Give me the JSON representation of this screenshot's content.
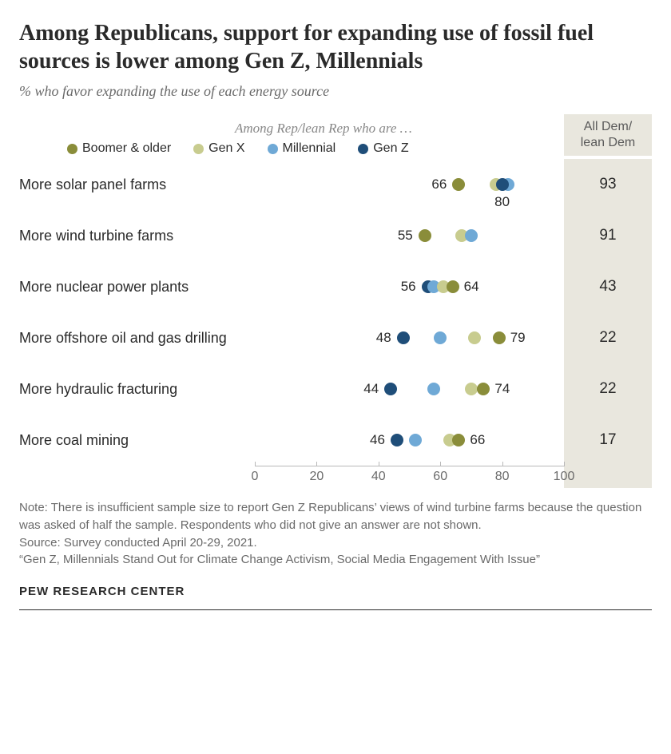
{
  "title": "Among Republicans, support for expanding use of fossil fuel sources is lower among Gen Z, Millennials",
  "subtitle": "% who favor expanding the use of each energy source",
  "legend": {
    "title": "Among Rep/lean Rep who are …",
    "items": [
      {
        "key": "boomer",
        "label": "Boomer & older",
        "color": "#8a8d3a"
      },
      {
        "key": "genx",
        "label": "Gen X",
        "color": "#c8cc8f"
      },
      {
        "key": "millennial",
        "label": "Millennial",
        "color": "#6fa9d6"
      },
      {
        "key": "genz",
        "label": "Gen Z",
        "color": "#1f4e79"
      }
    ]
  },
  "right_header": "All Dem/ lean Dem",
  "axis": {
    "min": 0,
    "max": 100,
    "step": 20
  },
  "rows": [
    {
      "label": "More solar panel farms",
      "dem": 93,
      "points": [
        {
          "key": "boomer",
          "value": 66,
          "label": "left"
        },
        {
          "key": "genx",
          "value": 78
        },
        {
          "key": "millennial",
          "value": 82
        },
        {
          "key": "genz",
          "value": 80,
          "label": "under"
        }
      ]
    },
    {
      "label": "More wind turbine farms",
      "dem": 91,
      "points": [
        {
          "key": "boomer",
          "value": 55,
          "label": "left"
        },
        {
          "key": "genx",
          "value": 67
        },
        {
          "key": "millennial",
          "value": 70
        }
      ]
    },
    {
      "label": "More nuclear power plants",
      "dem": 43,
      "points": [
        {
          "key": "genz",
          "value": 56,
          "label": "left"
        },
        {
          "key": "millennial",
          "value": 58
        },
        {
          "key": "genx",
          "value": 61
        },
        {
          "key": "boomer",
          "value": 64,
          "label": "right"
        }
      ]
    },
    {
      "label": "More offshore oil and gas drilling",
      "dem": 22,
      "points": [
        {
          "key": "genz",
          "value": 48,
          "label": "left"
        },
        {
          "key": "millennial",
          "value": 60
        },
        {
          "key": "genx",
          "value": 71
        },
        {
          "key": "boomer",
          "value": 79,
          "label": "right"
        }
      ]
    },
    {
      "label": "More hydraulic fracturing",
      "dem": 22,
      "points": [
        {
          "key": "genz",
          "value": 44,
          "label": "left"
        },
        {
          "key": "millennial",
          "value": 58
        },
        {
          "key": "genx",
          "value": 70
        },
        {
          "key": "boomer",
          "value": 74,
          "label": "right"
        }
      ]
    },
    {
      "label": "More coal mining",
      "dem": 17,
      "points": [
        {
          "key": "genz",
          "value": 46,
          "label": "left"
        },
        {
          "key": "millennial",
          "value": 52
        },
        {
          "key": "genx",
          "value": 63
        },
        {
          "key": "boomer",
          "value": 66,
          "label": "right"
        }
      ]
    }
  ],
  "notes": [
    "Note: There is insufficient sample size to report Gen Z Republicans’ views of wind turbine farms because the question was asked of half the sample. Respondents who did not give an answer are not shown.",
    "Source: Survey conducted April 20-29, 2021.",
    "“Gen Z, Millennials Stand Out for Climate Change Activism, Social Media Engagement With Issue”"
  ],
  "brand": "PEW RESEARCH CENTER"
}
